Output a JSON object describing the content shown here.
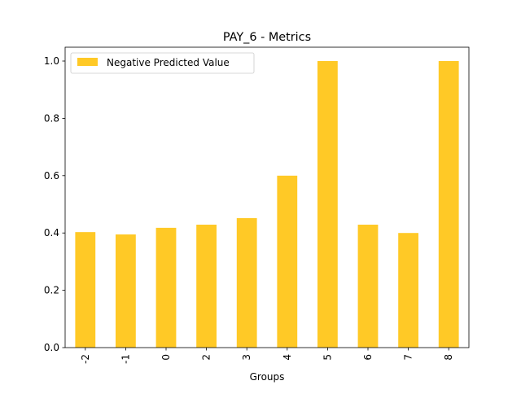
{
  "chart_data": {
    "type": "bar",
    "title": "PAY_6 - Metrics",
    "xlabel": "Groups",
    "ylabel": "",
    "categories": [
      "-2",
      "-1",
      "0",
      "2",
      "3",
      "4",
      "5",
      "6",
      "7",
      "8"
    ],
    "series": [
      {
        "name": "Negative Predicted Value",
        "color": "#ffc926",
        "values": [
          0.403,
          0.395,
          0.418,
          0.429,
          0.452,
          0.6,
          1.0,
          0.429,
          0.4,
          1.0
        ]
      }
    ],
    "ylim": [
      0,
      1.05
    ],
    "yticks": [
      "0.0",
      "0.2",
      "0.4",
      "0.6",
      "0.8",
      "1.0"
    ],
    "grid": false,
    "legend": "top-left"
  }
}
